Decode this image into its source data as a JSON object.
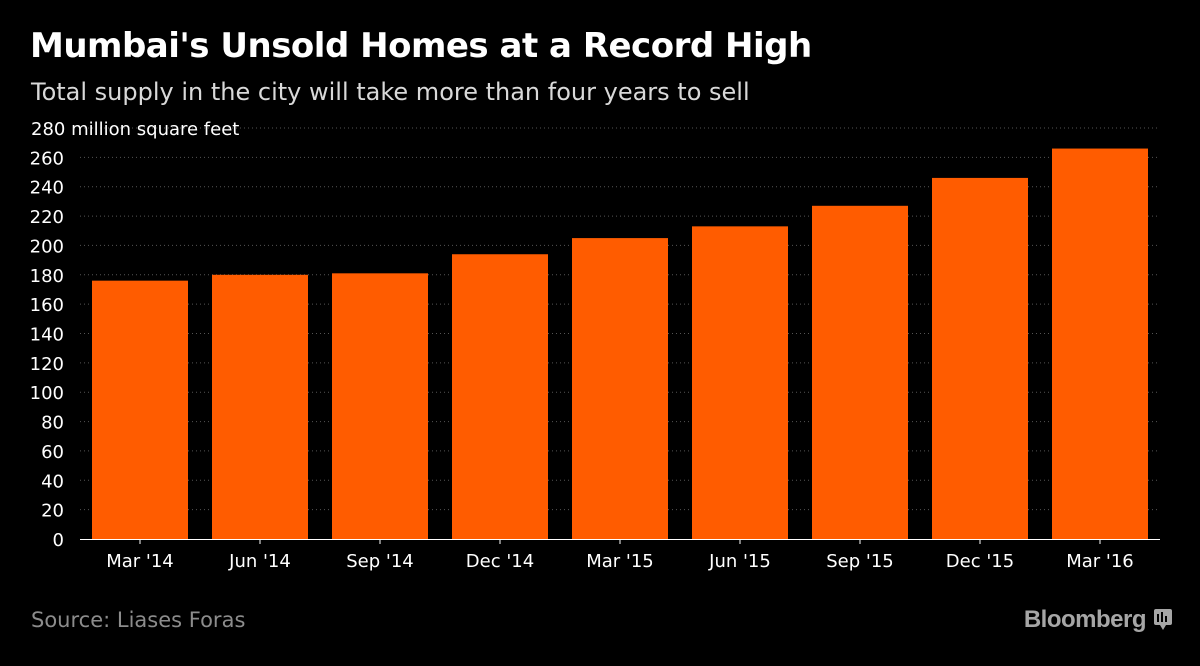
{
  "header": {
    "title": "Mumbai's Unsold Homes at a Record High",
    "subtitle": "Total supply in the city will take more than four years to sell"
  },
  "footer": {
    "source": "Source: Liases Foras",
    "brand": "Bloomberg",
    "brand_icon": "bloomberg-terminal-icon"
  },
  "colors": {
    "background": "#000000",
    "bar": "#ff5c00",
    "grid": "#555555",
    "text": "#ffffff"
  },
  "chart_data": {
    "type": "bar",
    "title": "Mumbai's Unsold Homes at a Record High",
    "subtitle": "Total supply in the city will take more than four years to sell",
    "ylabel": "280 million square feet",
    "categories": [
      "Mar '14",
      "Jun '14",
      "Sep '14",
      "Dec '14",
      "Mar '15",
      "Jun '15",
      "Sep '15",
      "Dec '15",
      "Mar '16"
    ],
    "values": [
      176,
      180,
      181,
      194,
      205,
      213,
      227,
      246,
      266
    ],
    "ylim": [
      0,
      280
    ],
    "yticks": [
      0,
      20,
      40,
      60,
      80,
      100,
      120,
      140,
      160,
      180,
      200,
      220,
      240,
      260,
      280
    ],
    "ytick_labels": [
      "0",
      "20",
      "40",
      "60",
      "80",
      "100",
      "120",
      "140",
      "160",
      "180",
      "200",
      "220",
      "240",
      "260",
      "280 million square feet"
    ],
    "grid": true,
    "legend": "none"
  }
}
